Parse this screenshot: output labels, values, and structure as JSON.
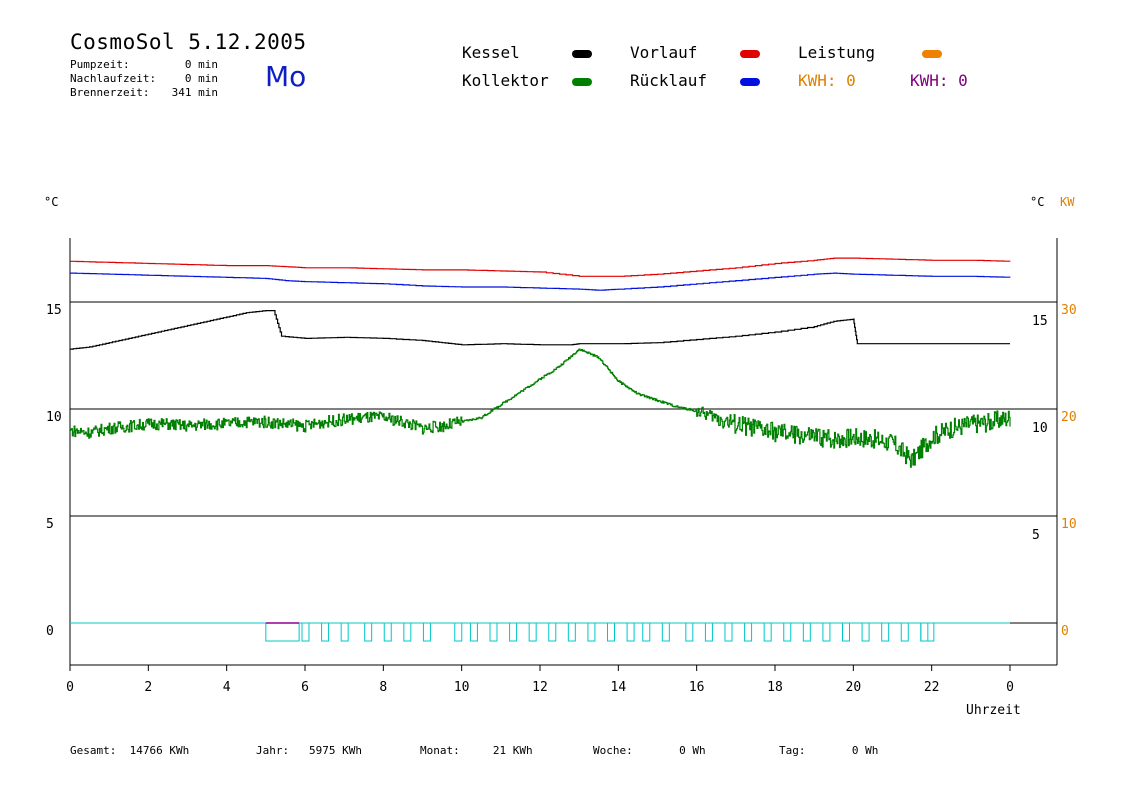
{
  "header": {
    "title": "CosmoSol 5.12.2005",
    "day": "Mo",
    "stats": [
      {
        "label": "Pumpzeit:",
        "value": "0 min"
      },
      {
        "label": "Nachlaufzeit:",
        "value": "0 min"
      },
      {
        "label": "Brennerzeit:",
        "value": "341 min"
      }
    ]
  },
  "legend": {
    "kessel": "Kessel",
    "kollektor": "Kollektor",
    "vorlauf": "Vorlauf",
    "ruecklauf": "Rücklauf",
    "leistung": "Leistung",
    "kwh1": "KWH: 0",
    "kwh2": "KWH: 0"
  },
  "colors": {
    "kessel": "#000000",
    "kollektor": "#008000",
    "vorlauf": "#e00000",
    "ruecklauf": "#0010e0",
    "leistung": "#f08000",
    "kwh2": "#800080",
    "pump": "#00c8c8",
    "pump_top": "#900090"
  },
  "footer": {
    "gesamt": "Gesamt:  14766 KWh",
    "jahr": "Jahr:   5975 KWh",
    "monat": "Monat:     21 KWh",
    "woche": "Woche:       0 Wh",
    "tag": "Tag:       0 Wh"
  },
  "chart_data": {
    "type": "line",
    "xlabel": "Uhrzeit",
    "ylabel_left": "°C",
    "ylabel_right": "°C",
    "ylabel_right2": "KW",
    "x_ticks": [
      "0",
      "2",
      "4",
      "6",
      "8",
      "10",
      "12",
      "14",
      "16",
      "18",
      "20",
      "22",
      "0"
    ],
    "y_ticks_left": [
      "15",
      "10",
      "5",
      "0"
    ],
    "y_ticks_right": [
      "15",
      "10",
      "5"
    ],
    "y_ticks_right2": [
      "30",
      "20",
      "10",
      "0"
    ],
    "ylim": [
      -1.5,
      18
    ],
    "xlim": [
      0,
      24
    ],
    "grid": "horizontal",
    "series": [
      {
        "name": "Vorlauf",
        "key": "vorlauf",
        "x": [
          0,
          1,
          2,
          3,
          4,
          5,
          5.5,
          6,
          7,
          8,
          9,
          10,
          11,
          12,
          13,
          13.5,
          14,
          15,
          16,
          17,
          18,
          19,
          19.5,
          20,
          21,
          22,
          23,
          24
        ],
        "y": [
          16.9,
          16.85,
          16.8,
          16.75,
          16.7,
          16.7,
          16.65,
          16.6,
          16.6,
          16.55,
          16.5,
          16.5,
          16.45,
          16.4,
          16.2,
          16.2,
          16.2,
          16.3,
          16.45,
          16.6,
          16.8,
          16.95,
          17.05,
          17.05,
          17.0,
          16.95,
          16.95,
          16.9
        ]
      },
      {
        "name": "Rücklauf",
        "key": "ruecklauf",
        "x": [
          0,
          1,
          2,
          3,
          4,
          5,
          5.5,
          6,
          7,
          8,
          9,
          10,
          11,
          12,
          13,
          13.5,
          14,
          15,
          16,
          17,
          18,
          19,
          19.5,
          20,
          21,
          22,
          23,
          24
        ],
        "y": [
          16.35,
          16.3,
          16.25,
          16.2,
          16.15,
          16.1,
          16.0,
          15.95,
          15.9,
          15.85,
          15.75,
          15.7,
          15.7,
          15.65,
          15.6,
          15.55,
          15.6,
          15.7,
          15.85,
          16.0,
          16.15,
          16.3,
          16.35,
          16.3,
          16.25,
          16.2,
          16.2,
          16.15
        ]
      },
      {
        "name": "Kessel",
        "key": "kessel",
        "x": [
          0,
          0.5,
          1,
          1.5,
          2,
          2.5,
          3,
          3.5,
          4,
          4.5,
          5,
          5.2,
          5.4,
          6,
          7,
          8,
          9,
          9.5,
          10,
          11,
          12,
          12.8,
          13,
          14,
          15,
          16,
          17,
          18,
          19,
          19.5,
          20,
          20.1,
          21,
          22,
          23,
          24
        ],
        "y": [
          12.8,
          12.9,
          13.1,
          13.3,
          13.5,
          13.7,
          13.9,
          14.1,
          14.3,
          14.5,
          14.6,
          14.6,
          13.4,
          13.3,
          13.35,
          13.3,
          13.2,
          13.1,
          13.0,
          13.05,
          13.0,
          13.0,
          13.05,
          13.05,
          13.1,
          13.25,
          13.4,
          13.6,
          13.85,
          14.1,
          14.2,
          13.05,
          13.05,
          13.05,
          13.05,
          13.05
        ]
      },
      {
        "name": "Kollektor",
        "key": "kollektor",
        "x": [
          0,
          0.5,
          1,
          1.5,
          2,
          2.5,
          3,
          3.5,
          4,
          4.5,
          5,
          5.5,
          6,
          6.5,
          7,
          7.5,
          8,
          8.5,
          9,
          9.5,
          10,
          10.5,
          11,
          11.5,
          12,
          12.5,
          13,
          13.5,
          14,
          14.5,
          15,
          15.5,
          16,
          16.5,
          17,
          17.5,
          18,
          18.5,
          19,
          19.5,
          20,
          20.5,
          21,
          21.5,
          22,
          22.5,
          23,
          23.5,
          24
        ],
        "y": [
          9.0,
          8.9,
          9.1,
          9.2,
          9.3,
          9.3,
          9.2,
          9.3,
          9.3,
          9.4,
          9.4,
          9.3,
          9.2,
          9.4,
          9.5,
          9.6,
          9.6,
          9.4,
          9.1,
          9.2,
          9.4,
          9.6,
          10.2,
          10.8,
          11.4,
          12.0,
          12.8,
          12.4,
          11.3,
          10.7,
          10.4,
          10.1,
          9.9,
          9.6,
          9.3,
          9.1,
          8.9,
          8.8,
          8.7,
          8.6,
          8.7,
          8.6,
          8.4,
          7.6,
          8.7,
          9.1,
          9.3,
          9.4,
          9.6
        ]
      }
    ],
    "pump_pulses_hours": [
      6,
      6.5,
      7,
      7.6,
      8.1,
      8.6,
      9.1,
      9.9,
      10.3,
      10.8,
      11.3,
      11.8,
      12.3,
      12.8,
      13.3,
      13.8,
      14.3,
      14.7,
      15.2,
      15.8,
      16.3,
      16.8,
      17.3,
      17.8,
      18.3,
      18.8,
      19.3,
      19.8,
      20.3,
      20.8,
      21.3,
      21.8
    ]
  }
}
